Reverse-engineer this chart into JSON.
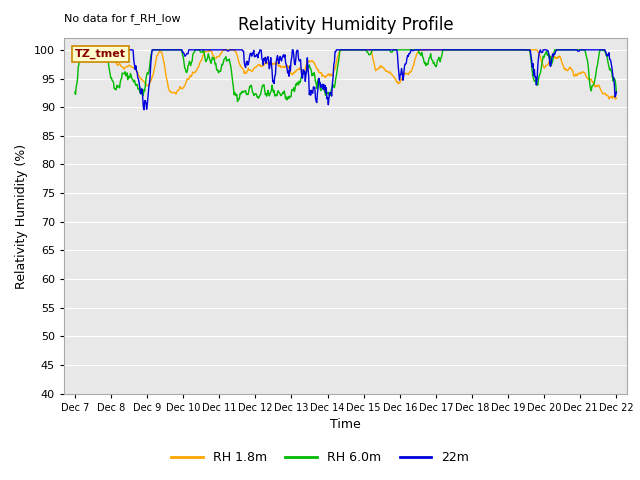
{
  "title": "Relativity Humidity Profile",
  "annotation": "No data for f_RH_low",
  "tz_label": "TZ_tmet",
  "xlabel": "Time",
  "ylabel": "Relativity Humidity (%)",
  "ylim": [
    40,
    102
  ],
  "yticks": [
    40,
    45,
    50,
    55,
    60,
    65,
    70,
    75,
    80,
    85,
    90,
    95,
    100
  ],
  "x_tick_labels": [
    "Dec 7",
    "Dec 8",
    "Dec 9",
    "Dec 10",
    "Dec 11",
    "Dec 12",
    "Dec 13",
    "Dec 14",
    "Dec 15",
    "Dec 16",
    "Dec 17",
    "Dec 18",
    "Dec 19",
    "Dec 20",
    "Dec 21",
    "Dec 22"
  ],
  "color_rh18": "#FFA500",
  "color_rh60": "#00BB00",
  "color_22m": "#0000DD",
  "legend_labels": [
    "RH 1.8m",
    "RH 6.0m",
    "22m"
  ],
  "bg_color": "#E8E8E8",
  "grid_color": "#FFFFFF",
  "title_fontsize": 12,
  "label_fontsize": 9,
  "tick_fontsize": 8,
  "annotation_fontsize": 8,
  "tz_fontsize": 8
}
